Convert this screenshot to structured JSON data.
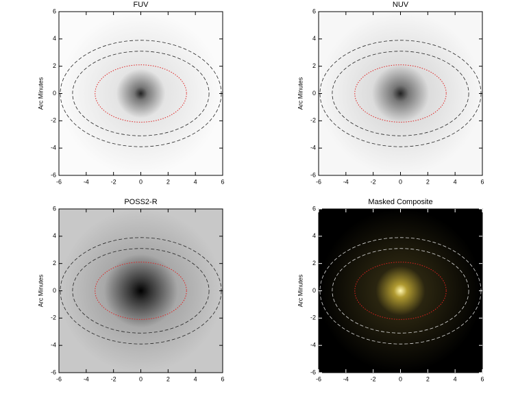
{
  "chart_data": [
    {
      "type": "image",
      "title": "FUV",
      "ylabel": "Arc Minutes",
      "xlim": [
        -6,
        6
      ],
      "ylim": [
        -6,
        6
      ],
      "xticks": [
        -6,
        -4,
        -2,
        0,
        2,
        4,
        6
      ],
      "yticks": [
        -6,
        -4,
        -2,
        0,
        2,
        4,
        6
      ]
    },
    {
      "type": "image",
      "title": "NUV",
      "ylabel": "Arc Minutes",
      "xlim": [
        -6,
        6
      ],
      "ylim": [
        -6,
        6
      ],
      "xticks": [
        -6,
        -4,
        -2,
        0,
        2,
        4,
        6
      ],
      "yticks": [
        -6,
        -4,
        -2,
        0,
        2,
        4,
        6
      ]
    },
    {
      "type": "image",
      "title": "POSS2-R",
      "ylabel": "Arc Minutes",
      "xlim": [
        -6,
        6
      ],
      "ylim": [
        -6,
        6
      ],
      "xticks": [
        -6,
        -4,
        -2,
        0,
        2,
        4,
        6
      ],
      "yticks": [
        -6,
        -4,
        -2,
        0,
        2,
        4,
        6
      ]
    },
    {
      "type": "image",
      "title": "Masked Composite",
      "ylabel": "Arc Minutes",
      "xlim": [
        -6,
        6
      ],
      "ylim": [
        -6,
        6
      ],
      "xticks": [
        -6,
        -4,
        -2,
        0,
        2,
        4,
        6
      ],
      "yticks": [
        -6,
        -4,
        -2,
        0,
        2,
        4,
        6
      ]
    }
  ]
}
